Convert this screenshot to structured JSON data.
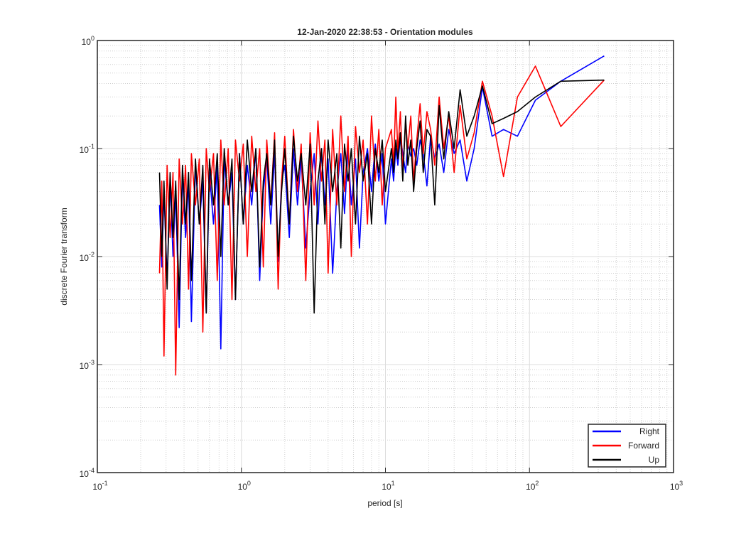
{
  "chart_data": {
    "type": "line",
    "title": "12-Jan-2020 22:38:53 - Orientation modules",
    "xlabel": "period [s]",
    "ylabel": "discrete Fourier transform",
    "xscale": "log",
    "yscale": "log",
    "grid": true,
    "minor_grid": true,
    "legend_position": "lower right",
    "xlim": [
      0.1,
      1000
    ],
    "ylim": [
      0.0001,
      1
    ],
    "xticks": [
      {
        "value": 0.1,
        "label": "10",
        "exponent": "-1"
      },
      {
        "value": 1,
        "label": "10",
        "exponent": "0"
      },
      {
        "value": 10,
        "label": "10",
        "exponent": "1"
      },
      {
        "value": 100,
        "label": "10",
        "exponent": "2"
      },
      {
        "value": 1000,
        "label": "10",
        "exponent": "3"
      }
    ],
    "yticks": [
      {
        "value": 0.0001,
        "label": "10",
        "exponent": "-4"
      },
      {
        "value": 0.001,
        "label": "10",
        "exponent": "-3"
      },
      {
        "value": 0.01,
        "label": "10",
        "exponent": "-2"
      },
      {
        "value": 0.1,
        "label": "10",
        "exponent": "-1"
      },
      {
        "value": 1,
        "label": "10",
        "exponent": "0"
      }
    ],
    "x": [
      330,
      165,
      110,
      82.5,
      66,
      55,
      47.1,
      41.3,
      36.7,
      33,
      30,
      27.5,
      25.4,
      23.6,
      22,
      20.6,
      19.4,
      18.3,
      17.4,
      16.5,
      15.7,
      15,
      14.3,
      13.8,
      13.2,
      12.7,
      12.2,
      11.8,
      11.4,
      11,
      10,
      9.5,
      9,
      8.5,
      8,
      7.5,
      7,
      6.6,
      6.2,
      5.8,
      5.5,
      5.2,
      4.9,
      4.6,
      4.3,
      4.0,
      3.8,
      3.6,
      3.4,
      3.2,
      3.0,
      2.8,
      2.6,
      2.45,
      2.3,
      2.15,
      2.0,
      1.9,
      1.8,
      1.7,
      1.6,
      1.5,
      1.42,
      1.34,
      1.26,
      1.18,
      1.1,
      1.03,
      0.97,
      0.91,
      0.86,
      0.81,
      0.76,
      0.72,
      0.68,
      0.64,
      0.6,
      0.57,
      0.54,
      0.51,
      0.48,
      0.45,
      0.43,
      0.41,
      0.39,
      0.37,
      0.35,
      0.335,
      0.32,
      0.305,
      0.29,
      0.28,
      0.27
    ],
    "series": [
      {
        "name": "Right",
        "color": "#0000ff",
        "values": [
          0.72,
          0.42,
          0.28,
          0.13,
          0.15,
          0.13,
          0.37,
          0.1,
          0.05,
          0.12,
          0.09,
          0.15,
          0.06,
          0.11,
          0.08,
          0.13,
          0.045,
          0.09,
          0.12,
          0.07,
          0.1,
          0.085,
          0.11,
          0.06,
          0.09,
          0.13,
          0.07,
          0.1,
          0.05,
          0.08,
          0.02,
          0.09,
          0.05,
          0.11,
          0.04,
          0.1,
          0.06,
          0.012,
          0.08,
          0.03,
          0.1,
          0.025,
          0.09,
          0.04,
          0.007,
          0.08,
          0.03,
          0.1,
          0.02,
          0.09,
          0.04,
          0.012,
          0.08,
          0.03,
          0.1,
          0.015,
          0.07,
          0.05,
          0.009,
          0.09,
          0.02,
          0.08,
          0.04,
          0.006,
          0.1,
          0.03,
          0.07,
          0.02,
          0.09,
          0.004,
          0.06,
          0.03,
          0.08,
          0.0014,
          0.07,
          0.02,
          0.06,
          0.003,
          0.05,
          0.02,
          0.07,
          0.0025,
          0.05,
          0.015,
          0.06,
          0.0022,
          0.04,
          0.01,
          0.05,
          0.006,
          0.04,
          0.008,
          0.03
        ]
      },
      {
        "name": "Forward",
        "color": "#ff0000",
        "values": [
          0.43,
          0.16,
          0.58,
          0.3,
          0.055,
          0.2,
          0.42,
          0.14,
          0.08,
          0.25,
          0.06,
          0.2,
          0.1,
          0.3,
          0.07,
          0.15,
          0.22,
          0.09,
          0.26,
          0.12,
          0.05,
          0.2,
          0.1,
          0.18,
          0.06,
          0.22,
          0.09,
          0.3,
          0.07,
          0.15,
          0.1,
          0.03,
          0.15,
          0.05,
          0.2,
          0.02,
          0.12,
          0.06,
          0.16,
          0.01,
          0.13,
          0.04,
          0.2,
          0.03,
          0.15,
          0.007,
          0.12,
          0.05,
          0.18,
          0.03,
          0.14,
          0.006,
          0.11,
          0.04,
          0.15,
          0.02,
          0.13,
          0.05,
          0.005,
          0.14,
          0.03,
          0.12,
          0.008,
          0.1,
          0.04,
          0.13,
          0.01,
          0.11,
          0.05,
          0.12,
          0.004,
          0.1,
          0.03,
          0.12,
          0.006,
          0.09,
          0.04,
          0.1,
          0.002,
          0.08,
          0.03,
          0.09,
          0.005,
          0.07,
          0.02,
          0.08,
          0.0008,
          0.06,
          0.015,
          0.07,
          0.0012,
          0.05,
          0.007
        ]
      },
      {
        "name": "Up",
        "color": "#000000",
        "values": [
          0.43,
          0.42,
          0.3,
          0.22,
          0.19,
          0.17,
          0.38,
          0.2,
          0.13,
          0.35,
          0.1,
          0.22,
          0.08,
          0.25,
          0.03,
          0.13,
          0.15,
          0.06,
          0.18,
          0.1,
          0.04,
          0.12,
          0.07,
          0.2,
          0.05,
          0.14,
          0.08,
          0.12,
          0.06,
          0.1,
          0.04,
          0.12,
          0.06,
          0.1,
          0.02,
          0.09,
          0.05,
          0.13,
          0.02,
          0.1,
          0.05,
          0.11,
          0.012,
          0.09,
          0.04,
          0.12,
          0.02,
          0.1,
          0.05,
          0.003,
          0.11,
          0.03,
          0.09,
          0.05,
          0.13,
          0.02,
          0.1,
          0.04,
          0.01,
          0.12,
          0.03,
          0.09,
          0.05,
          0.008,
          0.1,
          0.04,
          0.12,
          0.02,
          0.09,
          0.004,
          0.08,
          0.03,
          0.1,
          0.01,
          0.09,
          0.03,
          0.08,
          0.003,
          0.07,
          0.02,
          0.08,
          0.006,
          0.06,
          0.02,
          0.07,
          0.004,
          0.05,
          0.015,
          0.06,
          0.005,
          0.05,
          0.01,
          0.06
        ]
      }
    ]
  }
}
